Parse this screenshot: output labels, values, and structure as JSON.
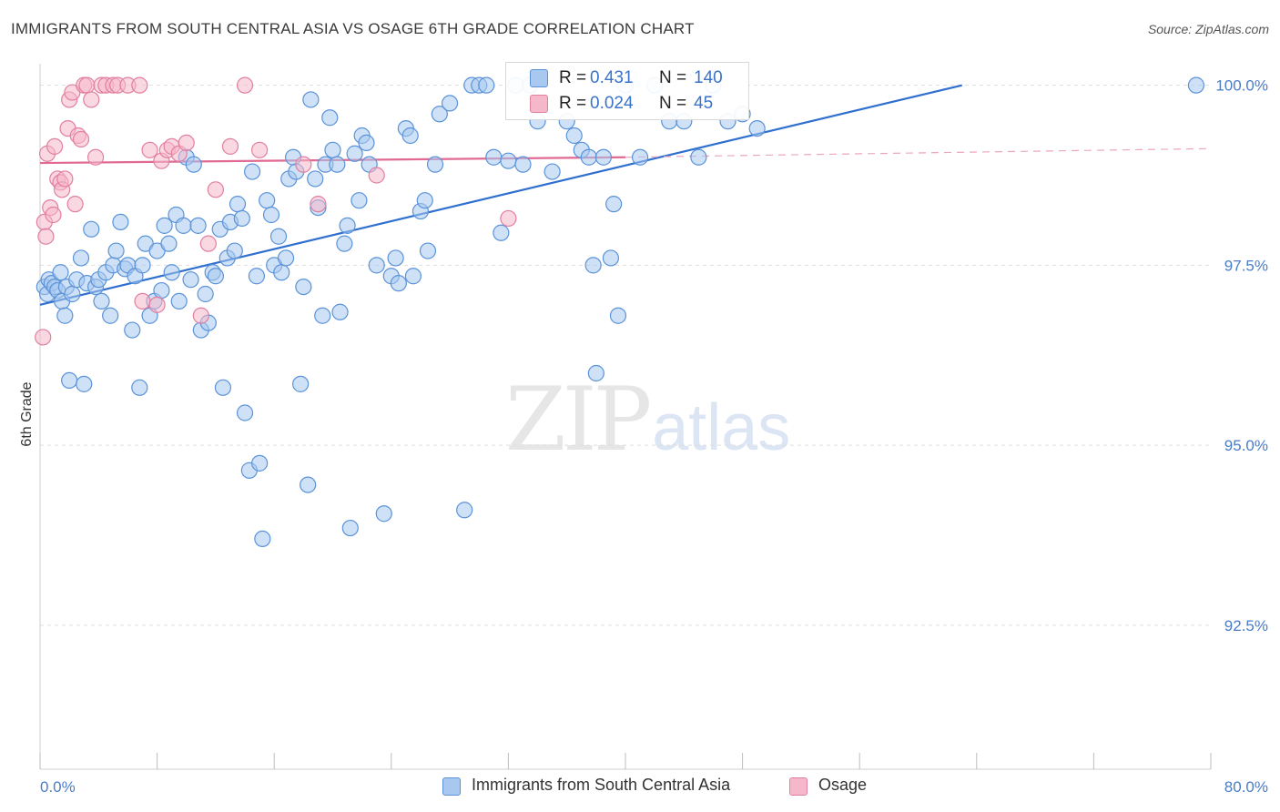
{
  "title": "IMMIGRANTS FROM SOUTH CENTRAL ASIA VS OSAGE 6TH GRADE CORRELATION CHART",
  "source": "Source: ZipAtlas.com",
  "watermark": {
    "zip": "ZIP",
    "atlas": "atlas"
  },
  "legend": {
    "rows": [
      {
        "r_key": "R =",
        "r_val": "0.431",
        "n_key": "N =",
        "n_val": "140",
        "color": "#a8c8f0"
      },
      {
        "r_key": "R =",
        "r_val": "0.024",
        "n_key": "N =",
        "n_val": "45",
        "color": "#f5b8cb"
      }
    ]
  },
  "bottom_legend": [
    {
      "label": "Immigrants from South Central Asia",
      "color": "#a8c8f0"
    },
    {
      "label": "Osage",
      "color": "#f5b8cb"
    }
  ],
  "chart_data": {
    "type": "scatter",
    "title": "IMMIGRANTS FROM SOUTH CENTRAL ASIA VS OSAGE 6TH GRADE CORRELATION CHART",
    "xlabel": "",
    "ylabel": "6th Grade",
    "xlim": [
      0,
      80
    ],
    "ylim": [
      90.5,
      100.4
    ],
    "x_tick_labels": [
      "0.0%",
      "80.0%"
    ],
    "y_ticks": [
      92.5,
      95.0,
      97.5,
      100.0
    ],
    "y_tick_labels": [
      "92.5%",
      "95.0%",
      "97.5%",
      "100.0%"
    ],
    "grid": true,
    "legend_position": "top-center",
    "series": [
      {
        "name": "Immigrants from South Central Asia",
        "color": "#5b93d8",
        "fill": "#a8c8f0",
        "trend": {
          "x": [
            0,
            63
          ],
          "y": [
            96.95,
            100.0
          ],
          "style": "solid"
        },
        "points": [
          [
            0.3,
            97.2
          ],
          [
            0.5,
            97.1
          ],
          [
            0.6,
            97.3
          ],
          [
            0.8,
            97.25
          ],
          [
            1.0,
            97.2
          ],
          [
            1.2,
            97.15
          ],
          [
            1.4,
            97.4
          ],
          [
            1.5,
            97.0
          ],
          [
            1.7,
            96.8
          ],
          [
            1.8,
            97.2
          ],
          [
            2.0,
            95.9
          ],
          [
            2.2,
            97.1
          ],
          [
            2.5,
            97.3
          ],
          [
            2.8,
            97.6
          ],
          [
            3.0,
            95.85
          ],
          [
            3.2,
            97.25
          ],
          [
            3.5,
            98.0
          ],
          [
            3.8,
            97.2
          ],
          [
            4.0,
            97.3
          ],
          [
            4.2,
            97.0
          ],
          [
            4.5,
            97.4
          ],
          [
            4.8,
            96.8
          ],
          [
            5.0,
            97.5
          ],
          [
            5.2,
            97.7
          ],
          [
            5.5,
            98.1
          ],
          [
            5.8,
            97.45
          ],
          [
            6.0,
            97.5
          ],
          [
            6.3,
            96.6
          ],
          [
            6.5,
            97.35
          ],
          [
            6.8,
            95.8
          ],
          [
            7.0,
            97.5
          ],
          [
            7.2,
            97.8
          ],
          [
            7.5,
            96.8
          ],
          [
            7.8,
            97.0
          ],
          [
            8.0,
            97.7
          ],
          [
            8.3,
            97.15
          ],
          [
            8.5,
            98.05
          ],
          [
            8.8,
            97.8
          ],
          [
            9.0,
            97.4
          ],
          [
            9.3,
            98.2
          ],
          [
            9.5,
            97.0
          ],
          [
            9.8,
            98.05
          ],
          [
            10.0,
            99.0
          ],
          [
            10.3,
            97.3
          ],
          [
            10.5,
            98.9
          ],
          [
            10.8,
            98.05
          ],
          [
            11.0,
            96.6
          ],
          [
            11.3,
            97.1
          ],
          [
            11.5,
            96.7
          ],
          [
            11.8,
            97.4
          ],
          [
            12.0,
            97.35
          ],
          [
            12.3,
            98.0
          ],
          [
            12.5,
            95.8
          ],
          [
            12.8,
            97.6
          ],
          [
            13.0,
            98.1
          ],
          [
            13.3,
            97.7
          ],
          [
            13.5,
            98.35
          ],
          [
            13.8,
            98.15
          ],
          [
            14.0,
            95.45
          ],
          [
            14.3,
            94.65
          ],
          [
            14.5,
            98.8
          ],
          [
            14.8,
            97.35
          ],
          [
            15.0,
            94.75
          ],
          [
            15.2,
            93.7
          ],
          [
            15.5,
            98.4
          ],
          [
            15.8,
            98.2
          ],
          [
            16.0,
            97.5
          ],
          [
            16.3,
            97.9
          ],
          [
            16.5,
            97.4
          ],
          [
            16.8,
            97.6
          ],
          [
            17.0,
            98.7
          ],
          [
            17.3,
            99.0
          ],
          [
            17.5,
            98.8
          ],
          [
            17.8,
            95.85
          ],
          [
            18.0,
            97.2
          ],
          [
            18.3,
            94.45
          ],
          [
            18.5,
            99.8
          ],
          [
            18.8,
            98.7
          ],
          [
            19.0,
            98.3
          ],
          [
            19.3,
            96.8
          ],
          [
            19.5,
            98.9
          ],
          [
            19.8,
            99.55
          ],
          [
            20.0,
            99.1
          ],
          [
            20.3,
            98.9
          ],
          [
            20.5,
            96.85
          ],
          [
            20.8,
            97.8
          ],
          [
            21.0,
            98.05
          ],
          [
            21.2,
            93.85
          ],
          [
            21.5,
            99.05
          ],
          [
            21.8,
            98.4
          ],
          [
            22.0,
            99.3
          ],
          [
            22.3,
            99.2
          ],
          [
            22.5,
            98.9
          ],
          [
            23.0,
            97.5
          ],
          [
            23.5,
            94.05
          ],
          [
            24.0,
            97.35
          ],
          [
            24.3,
            97.6
          ],
          [
            24.5,
            97.25
          ],
          [
            25.0,
            99.4
          ],
          [
            25.3,
            99.3
          ],
          [
            25.5,
            97.35
          ],
          [
            26.0,
            98.25
          ],
          [
            26.3,
            98.4
          ],
          [
            26.5,
            97.7
          ],
          [
            27.0,
            98.9
          ],
          [
            27.3,
            99.6
          ],
          [
            28.0,
            99.75
          ],
          [
            29.0,
            94.1
          ],
          [
            29.5,
            100.0
          ],
          [
            30.0,
            100.0
          ],
          [
            30.5,
            100.0
          ],
          [
            31.0,
            99.0
          ],
          [
            31.5,
            97.95
          ],
          [
            32.0,
            98.95
          ],
          [
            32.5,
            100.0
          ],
          [
            33.0,
            98.9
          ],
          [
            33.5,
            100.0
          ],
          [
            34.0,
            99.5
          ],
          [
            35.0,
            98.8
          ],
          [
            36.0,
            99.5
          ],
          [
            36.5,
            99.3
          ],
          [
            37.0,
            99.1
          ],
          [
            37.5,
            99.0
          ],
          [
            37.8,
            97.5
          ],
          [
            38.0,
            96.0
          ],
          [
            38.5,
            99.0
          ],
          [
            39.0,
            97.6
          ],
          [
            39.2,
            98.35
          ],
          [
            39.5,
            96.8
          ],
          [
            40.0,
            100.0
          ],
          [
            41.0,
            99.0
          ],
          [
            42.0,
            100.0
          ],
          [
            43.0,
            99.5
          ],
          [
            44.0,
            99.5
          ],
          [
            45.0,
            99.0
          ],
          [
            46.0,
            100.0
          ],
          [
            47.0,
            99.5
          ],
          [
            48.0,
            99.6
          ],
          [
            49.0,
            99.4
          ],
          [
            79.0,
            100.0
          ]
        ]
      },
      {
        "name": "Osage",
        "color": "#e17fa0",
        "fill": "#f5b8cb",
        "trend": {
          "x": [
            0,
            40
          ],
          "y": [
            98.92,
            99.0
          ],
          "style": "solid",
          "dash_x": [
            40,
            80
          ],
          "dash_y": [
            99.0,
            99.12
          ]
        },
        "points": [
          [
            0.2,
            96.5
          ],
          [
            0.3,
            98.1
          ],
          [
            0.4,
            97.9
          ],
          [
            0.5,
            99.05
          ],
          [
            0.7,
            98.3
          ],
          [
            0.9,
            98.2
          ],
          [
            1.0,
            99.15
          ],
          [
            1.2,
            98.7
          ],
          [
            1.4,
            98.65
          ],
          [
            1.5,
            98.55
          ],
          [
            1.7,
            98.7
          ],
          [
            1.9,
            99.4
          ],
          [
            2.0,
            99.8
          ],
          [
            2.2,
            99.9
          ],
          [
            2.4,
            98.35
          ],
          [
            2.6,
            99.3
          ],
          [
            2.8,
            99.25
          ],
          [
            3.0,
            100.0
          ],
          [
            3.2,
            100.0
          ],
          [
            3.5,
            99.8
          ],
          [
            3.8,
            99.0
          ],
          [
            4.2,
            100.0
          ],
          [
            4.5,
            100.0
          ],
          [
            5.0,
            100.0
          ],
          [
            5.3,
            100.0
          ],
          [
            6.0,
            100.0
          ],
          [
            6.8,
            100.0
          ],
          [
            7.0,
            97.0
          ],
          [
            7.5,
            99.1
          ],
          [
            8.0,
            96.95
          ],
          [
            8.3,
            98.95
          ],
          [
            8.7,
            99.1
          ],
          [
            9.0,
            99.15
          ],
          [
            9.5,
            99.05
          ],
          [
            10.0,
            99.2
          ],
          [
            11.0,
            96.8
          ],
          [
            11.5,
            97.8
          ],
          [
            12.0,
            98.55
          ],
          [
            13.0,
            99.15
          ],
          [
            14.0,
            100.0
          ],
          [
            15.0,
            99.1
          ],
          [
            18.0,
            98.9
          ],
          [
            19.0,
            98.35
          ],
          [
            23.0,
            98.75
          ],
          [
            32.0,
            98.15
          ]
        ]
      }
    ]
  }
}
